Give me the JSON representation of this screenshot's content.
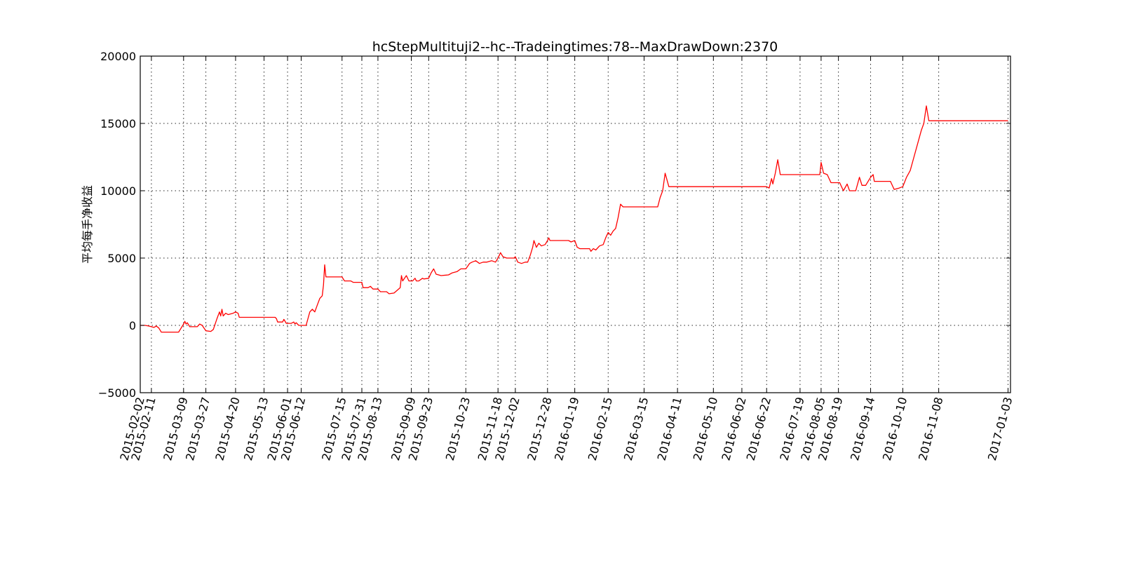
{
  "chart_data": {
    "type": "line",
    "title": "hcStepMultituji2--hc--Tradeingtimes:78--MaxDrawDown:2370",
    "xlabel": "",
    "ylabel": "平均每手净收益",
    "ylim": [
      -5000,
      20000
    ],
    "yticks": [
      -5000,
      0,
      5000,
      10000,
      15000,
      20000
    ],
    "ytick_labels": [
      "−5000",
      "0",
      "5000",
      "10000",
      "15000",
      "20000"
    ],
    "xlim": [
      "2015-02-02",
      "2017-01-05"
    ],
    "xtick_labels": [
      "2015-02-02",
      "2015-02-11",
      "2015-03-09",
      "2015-03-27",
      "2015-04-20",
      "2015-05-13",
      "2015-06-01",
      "2015-06-12",
      "2015-07-15",
      "2015-07-31",
      "2015-08-13",
      "2015-09-09",
      "2015-09-23",
      "2015-10-23",
      "2015-11-18",
      "2015-12-02",
      "2015-12-28",
      "2016-01-19",
      "2016-02-15",
      "2016-03-15",
      "2016-04-11",
      "2016-05-10",
      "2016-06-02",
      "2016-06-22",
      "2016-07-19",
      "2016-08-05",
      "2016-08-19",
      "2016-09-14",
      "2016-10-10",
      "2016-11-08",
      "2017-01-03"
    ],
    "grid": true,
    "series": [
      {
        "color": "#ff0000",
        "points": [
          [
            "2015-02-02",
            0
          ],
          [
            "2015-02-06",
            0
          ],
          [
            "2015-02-09",
            -50
          ],
          [
            "2015-02-11",
            -100
          ],
          [
            "2015-02-13",
            -150
          ],
          [
            "2015-02-15",
            -50
          ],
          [
            "2015-02-17",
            -200
          ],
          [
            "2015-02-19",
            -500
          ],
          [
            "2015-03-05",
            -500
          ],
          [
            "2015-03-09",
            100
          ],
          [
            "2015-03-10",
            300
          ],
          [
            "2015-03-11",
            100
          ],
          [
            "2015-03-12",
            200
          ],
          [
            "2015-03-14",
            -100
          ],
          [
            "2015-03-20",
            -100
          ],
          [
            "2015-03-22",
            100
          ],
          [
            "2015-03-24",
            0
          ],
          [
            "2015-03-27",
            -400
          ],
          [
            "2015-03-31",
            -450
          ],
          [
            "2015-04-02",
            -300
          ],
          [
            "2015-04-05",
            500
          ],
          [
            "2015-04-07",
            1000
          ],
          [
            "2015-04-08",
            700
          ],
          [
            "2015-04-09",
            1200
          ],
          [
            "2015-04-10",
            700
          ],
          [
            "2015-04-12",
            900
          ],
          [
            "2015-04-14",
            800
          ],
          [
            "2015-04-18",
            900
          ],
          [
            "2015-04-20",
            1000
          ],
          [
            "2015-04-22",
            900
          ],
          [
            "2015-04-23",
            600
          ],
          [
            "2015-05-22",
            600
          ],
          [
            "2015-05-23",
            500
          ],
          [
            "2015-05-24",
            250
          ],
          [
            "2015-05-28",
            250
          ],
          [
            "2015-05-29",
            450
          ],
          [
            "2015-05-31",
            150
          ],
          [
            "2015-06-04",
            150
          ],
          [
            "2015-06-06",
            250
          ],
          [
            "2015-06-07",
            100
          ],
          [
            "2015-06-08",
            200
          ],
          [
            "2015-06-10",
            0
          ],
          [
            "2015-06-12",
            0
          ],
          [
            "2015-06-16",
            0
          ],
          [
            "2015-06-19",
            1000
          ],
          [
            "2015-06-21",
            1200
          ],
          [
            "2015-06-23",
            1000
          ],
          [
            "2015-06-25",
            1500
          ],
          [
            "2015-06-27",
            2000
          ],
          [
            "2015-06-29",
            2200
          ],
          [
            "2015-06-30",
            3000
          ],
          [
            "2015-07-01",
            4500
          ],
          [
            "2015-07-02",
            3600
          ],
          [
            "2015-07-15",
            3600
          ],
          [
            "2015-07-17",
            3300
          ],
          [
            "2015-07-22",
            3300
          ],
          [
            "2015-07-24",
            3200
          ],
          [
            "2015-07-31",
            3200
          ],
          [
            "2015-08-01",
            2800
          ],
          [
            "2015-08-05",
            2800
          ],
          [
            "2015-08-07",
            2900
          ],
          [
            "2015-08-09",
            2700
          ],
          [
            "2015-08-13",
            2700
          ],
          [
            "2015-08-15",
            2500
          ],
          [
            "2015-08-20",
            2500
          ],
          [
            "2015-08-22",
            2350
          ],
          [
            "2015-08-26",
            2400
          ],
          [
            "2015-08-31",
            2800
          ],
          [
            "2015-09-01",
            3700
          ],
          [
            "2015-09-02",
            3300
          ],
          [
            "2015-09-05",
            3700
          ],
          [
            "2015-09-07",
            3300
          ],
          [
            "2015-09-10",
            3300
          ],
          [
            "2015-09-12",
            3500
          ],
          [
            "2015-09-13",
            3300
          ],
          [
            "2015-09-15",
            3300
          ],
          [
            "2015-09-18",
            3500
          ],
          [
            "2015-09-19",
            3450
          ],
          [
            "2015-09-23",
            3500
          ],
          [
            "2015-09-25",
            3900
          ],
          [
            "2015-09-27",
            4200
          ],
          [
            "2015-09-29",
            3800
          ],
          [
            "2015-10-03",
            3700
          ],
          [
            "2015-10-09",
            3750
          ],
          [
            "2015-10-12",
            3900
          ],
          [
            "2015-10-16",
            4000
          ],
          [
            "2015-10-19",
            4200
          ],
          [
            "2015-10-23",
            4200
          ],
          [
            "2015-10-26",
            4600
          ],
          [
            "2015-10-28",
            4700
          ],
          [
            "2015-10-31",
            4800
          ],
          [
            "2015-11-03",
            4600
          ],
          [
            "2015-11-06",
            4700
          ],
          [
            "2015-11-09",
            4700
          ],
          [
            "2015-11-13",
            4800
          ],
          [
            "2015-11-16",
            4700
          ],
          [
            "2015-11-18",
            5000
          ],
          [
            "2015-11-20",
            5400
          ],
          [
            "2015-11-22",
            5100
          ],
          [
            "2015-11-25",
            5000
          ],
          [
            "2015-12-01",
            5000
          ],
          [
            "2015-12-02",
            5100
          ],
          [
            "2015-12-04",
            4700
          ],
          [
            "2015-12-07",
            4600
          ],
          [
            "2015-12-10",
            4700
          ],
          [
            "2015-12-12",
            4700
          ],
          [
            "2015-12-14",
            5200
          ],
          [
            "2015-12-16",
            5800
          ],
          [
            "2015-12-17",
            6300
          ],
          [
            "2015-12-19",
            5800
          ],
          [
            "2015-12-21",
            6100
          ],
          [
            "2015-12-23",
            5900
          ],
          [
            "2015-12-26",
            6000
          ],
          [
            "2015-12-28",
            6300
          ],
          [
            "2015-12-29",
            6500
          ],
          [
            "2015-12-30",
            6300
          ],
          [
            "2016-01-14",
            6300
          ],
          [
            "2016-01-16",
            6200
          ],
          [
            "2016-01-19",
            6300
          ],
          [
            "2016-01-21",
            5800
          ],
          [
            "2016-01-23",
            5700
          ],
          [
            "2016-01-31",
            5700
          ],
          [
            "2016-02-01",
            5500
          ],
          [
            "2016-02-03",
            5700
          ],
          [
            "2016-02-05",
            5600
          ],
          [
            "2016-02-08",
            5900
          ],
          [
            "2016-02-11",
            6000
          ],
          [
            "2016-02-13",
            6500
          ],
          [
            "2016-02-15",
            6900
          ],
          [
            "2016-02-17",
            6700
          ],
          [
            "2016-02-19",
            7000
          ],
          [
            "2016-02-21",
            7200
          ],
          [
            "2016-02-23",
            8000
          ],
          [
            "2016-02-25",
            9000
          ],
          [
            "2016-02-27",
            8800
          ],
          [
            "2016-03-26",
            8800
          ],
          [
            "2016-03-28",
            9500
          ],
          [
            "2016-03-30",
            10000
          ],
          [
            "2016-04-01",
            11300
          ],
          [
            "2016-04-04",
            10300
          ],
          [
            "2016-06-22",
            10300
          ],
          [
            "2016-06-24",
            10200
          ],
          [
            "2016-06-26",
            10900
          ],
          [
            "2016-06-27",
            10500
          ],
          [
            "2016-06-29",
            11300
          ],
          [
            "2016-07-01",
            12300
          ],
          [
            "2016-07-03",
            11200
          ],
          [
            "2016-08-04",
            11200
          ],
          [
            "2016-08-05",
            12100
          ],
          [
            "2016-08-07",
            11300
          ],
          [
            "2016-08-10",
            11200
          ],
          [
            "2016-08-13",
            10600
          ],
          [
            "2016-08-20",
            10600
          ],
          [
            "2016-08-23",
            10000
          ],
          [
            "2016-08-26",
            10500
          ],
          [
            "2016-08-28",
            10000
          ],
          [
            "2016-09-02",
            10000
          ],
          [
            "2016-09-05",
            11000
          ],
          [
            "2016-09-07",
            10400
          ],
          [
            "2016-09-10",
            10400
          ],
          [
            "2016-09-14",
            11000
          ],
          [
            "2016-09-16",
            11200
          ],
          [
            "2016-09-17",
            10700
          ],
          [
            "2016-09-30",
            10700
          ],
          [
            "2016-10-03",
            10100
          ],
          [
            "2016-10-07",
            10200
          ],
          [
            "2016-10-10",
            10300
          ],
          [
            "2016-10-13",
            11000
          ],
          [
            "2016-10-16",
            11500
          ],
          [
            "2016-10-19",
            12500
          ],
          [
            "2016-10-22",
            13500
          ],
          [
            "2016-10-25",
            14500
          ],
          [
            "2016-10-27",
            15000
          ],
          [
            "2016-10-29",
            16300
          ],
          [
            "2016-10-31",
            15200
          ],
          [
            "2017-01-03",
            15200
          ]
        ]
      }
    ]
  }
}
